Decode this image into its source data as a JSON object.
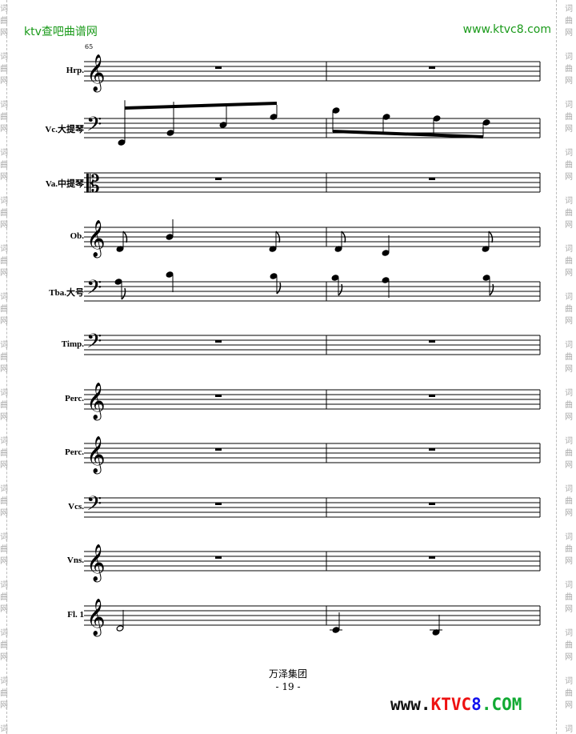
{
  "header": {
    "left": "ktv查吧曲谱网",
    "right": "www.ktvc8.com"
  },
  "watermark": "词曲网",
  "measure_number": "65",
  "instruments": [
    {
      "name": "Hrp.",
      "clef": "treble"
    },
    {
      "name": "Vc.大提琴",
      "clef": "bass"
    },
    {
      "name": "Va.中提琴",
      "clef": "alto"
    },
    {
      "name": "Ob.",
      "clef": "treble"
    },
    {
      "name": "Tba.大号",
      "clef": "bass"
    },
    {
      "name": "Timp.",
      "clef": "bass"
    },
    {
      "name": "Perc.",
      "clef": "treble"
    },
    {
      "name": "Perc.",
      "clef": "treble"
    },
    {
      "name": "Vcs.",
      "clef": "bass"
    },
    {
      "name": "Vns.",
      "clef": "treble"
    },
    {
      "name": "Fl. 1",
      "clef": "treble"
    }
  ],
  "footer": {
    "publisher": "万泽集团",
    "page": "- 19 -"
  },
  "logo": {
    "www": "www.",
    "ktv": "KTVC",
    "eight": "8",
    "com": ".COM",
    "colors": {
      "www": "#111111",
      "ktv": "#ee1111",
      "eight": "#1111ee",
      "com": "#11aa33"
    }
  }
}
